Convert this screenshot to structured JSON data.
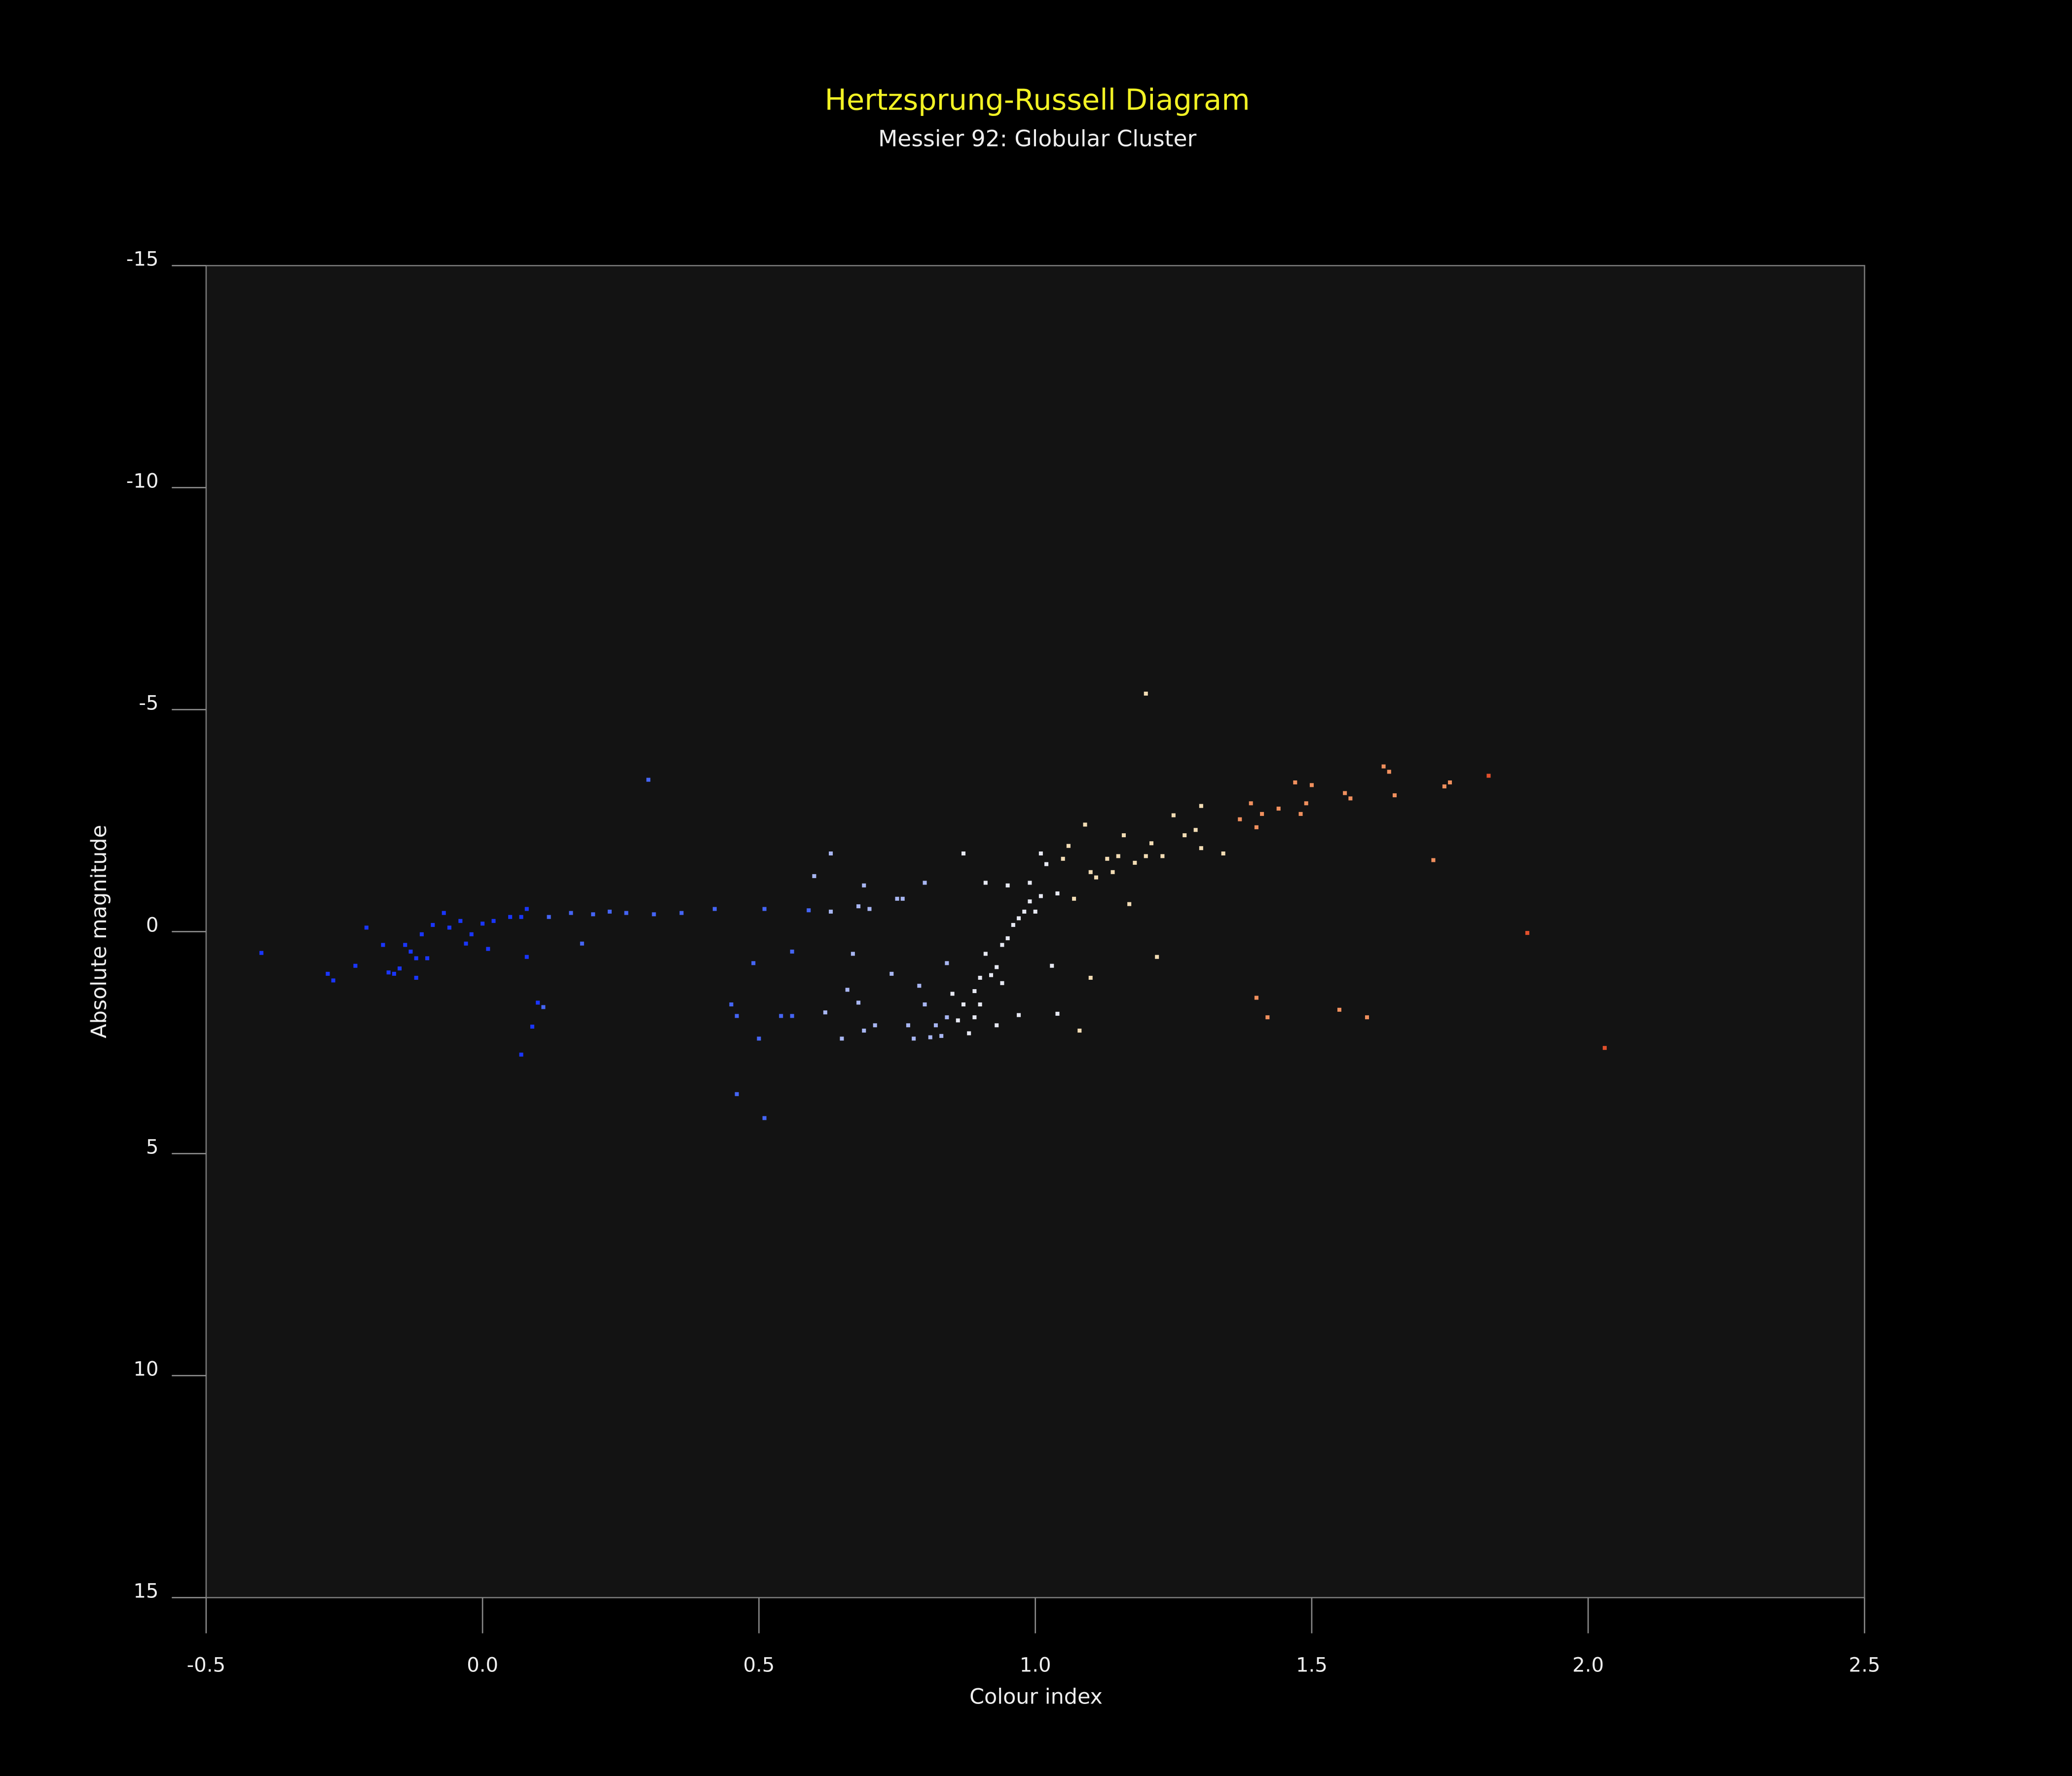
{
  "chart_data": {
    "type": "scatter",
    "title": "Hertzsprung-Russell Diagram",
    "subtitle": "Messier 92: Globular Cluster",
    "x_label": "Colour index",
    "y_label": "Absolute magnitude",
    "xlim": [
      -0.5,
      2.5
    ],
    "xticks": [
      -0.5,
      {
        "value": 0,
        "label": "0.0"
      },
      0.5,
      {
        "value": 1,
        "label": "1.0"
      },
      1.5,
      {
        "value": 2,
        "label": "2.0"
      },
      2.5
    ],
    "ylim": [
      -15,
      15
    ],
    "yticks": [
      -15,
      -10,
      -5,
      0,
      5,
      10,
      15
    ],
    "invert_y": true,
    "grid": false,
    "series": [
      {
        "color": "#1a36ff",
        "x": [
          -0.4,
          -0.28,
          -0.27,
          -0.23,
          -0.21,
          -0.18,
          -0.17,
          -0.16,
          -0.15,
          -0.14,
          -0.13,
          -0.12,
          -0.12,
          -0.11,
          -0.1,
          -0.09,
          -0.07,
          -0.06,
          -0.04,
          -0.03,
          -0.02,
          0.0,
          0.01,
          0.02,
          0.05,
          0.07,
          0.08,
          0.08,
          0.09,
          0.07,
          0.1
        ],
        "values": [
          0.48,
          0.95,
          1.1,
          0.77,
          -0.09,
          0.3,
          0.92,
          0.95,
          0.83,
          0.3,
          0.45,
          1.04,
          0.6,
          0.06,
          0.6,
          -0.15,
          -0.42,
          -0.09,
          -0.24,
          0.27,
          0.06,
          -0.18,
          0.39,
          -0.24,
          -0.33,
          -0.33,
          -0.51,
          0.57,
          2.14,
          2.77,
          1.6
        ]
      },
      {
        "color": "#4565f5",
        "x": [
          0.11,
          0.12,
          0.16,
          0.18,
          0.2,
          0.23,
          0.26,
          0.3,
          0.31,
          0.36,
          0.42,
          0.45,
          0.46,
          0.46,
          0.49,
          0.5,
          0.51,
          0.51,
          0.54,
          0.56,
          0.56,
          0.59
        ],
        "values": [
          1.7,
          -0.33,
          -0.42,
          0.27,
          -0.39,
          -0.45,
          -0.42,
          -3.42,
          -0.39,
          -0.42,
          -0.51,
          1.64,
          1.9,
          3.66,
          0.71,
          2.41,
          4.2,
          -0.51,
          1.9,
          1.9,
          0.45,
          -0.48
        ]
      },
      {
        "color": "#a8b6f2",
        "x": [
          0.6,
          0.63,
          0.62,
          0.63,
          0.65,
          0.66,
          0.67,
          0.68,
          0.68,
          0.69,
          0.69,
          0.7,
          0.71,
          0.74,
          0.75,
          0.76,
          0.77,
          0.78,
          0.79,
          0.8,
          0.8,
          0.81,
          0.82,
          0.83,
          0.84,
          0.84
        ],
        "values": [
          -1.25,
          -1.76,
          1.82,
          -0.45,
          2.41,
          1.31,
          0.5,
          1.6,
          -0.57,
          -1.04,
          2.23,
          -0.51,
          2.11,
          0.95,
          -0.74,
          -0.74,
          2.11,
          2.41,
          1.22,
          1.64,
          -1.1,
          2.38,
          2.11,
          2.35,
          1.93,
          0.71
        ]
      },
      {
        "color": "#e6e8f2",
        "x": [
          0.85,
          0.86,
          0.87,
          0.87,
          0.88,
          0.89,
          0.89,
          0.9,
          0.9,
          0.91,
          0.91,
          0.92,
          0.93,
          0.93,
          0.94,
          0.94,
          0.95,
          0.95,
          0.96,
          0.97,
          0.97,
          0.98,
          0.99,
          0.99,
          1.0,
          1.01,
          1.01,
          1.02,
          1.03,
          1.04,
          1.04
        ],
        "values": [
          1.4,
          2.0,
          1.64,
          -1.76,
          2.29,
          1.34,
          1.93,
          1.04,
          1.64,
          0.5,
          -1.1,
          0.98,
          0.8,
          2.11,
          0.3,
          1.16,
          0.15,
          -1.04,
          -0.15,
          -0.3,
          1.88,
          -0.45,
          -0.68,
          -1.1,
          -0.45,
          -1.76,
          -0.8,
          -1.52,
          0.77,
          1.85,
          -0.86
        ]
      },
      {
        "color": "#f2dcb4",
        "x": [
          1.05,
          1.06,
          1.07,
          1.08,
          1.09,
          1.1,
          1.1,
          1.11,
          1.13,
          1.14,
          1.15,
          1.16,
          1.17,
          1.18,
          1.2,
          1.2,
          1.21,
          1.22,
          1.23,
          1.25,
          1.27,
          1.29,
          1.3,
          1.3,
          1.34
        ],
        "values": [
          -1.64,
          -1.93,
          -0.74,
          2.23,
          -2.41,
          -1.34,
          1.04,
          -1.22,
          -1.64,
          -1.34,
          -1.7,
          -2.17,
          -0.62,
          -1.55,
          -1.7,
          -5.36,
          -1.99,
          0.57,
          -1.7,
          -2.62,
          -2.17,
          -2.29,
          -2.83,
          -1.88,
          -1.76
        ]
      },
      {
        "color": "#f0905e",
        "x": [
          1.37,
          1.39,
          1.4,
          1.4,
          1.41,
          1.42,
          1.44,
          1.47,
          1.48,
          1.49,
          1.5,
          1.55,
          1.56,
          1.57,
          1.6,
          1.63,
          1.64,
          1.65,
          1.72,
          1.74,
          1.75
        ],
        "values": [
          -2.53,
          -2.89,
          -2.35,
          1.49,
          -2.65,
          1.93,
          -2.77,
          -3.36,
          -2.65,
          -2.89,
          -3.3,
          1.76,
          -3.12,
          -3.0,
          1.93,
          -3.72,
          -3.6,
          -3.07,
          -1.61,
          -3.27,
          -3.36
        ]
      },
      {
        "color": "#e2502c",
        "x": [
          1.82,
          1.89,
          2.03
        ],
        "values": [
          -3.51,
          0.03,
          2.62
        ]
      }
    ]
  }
}
